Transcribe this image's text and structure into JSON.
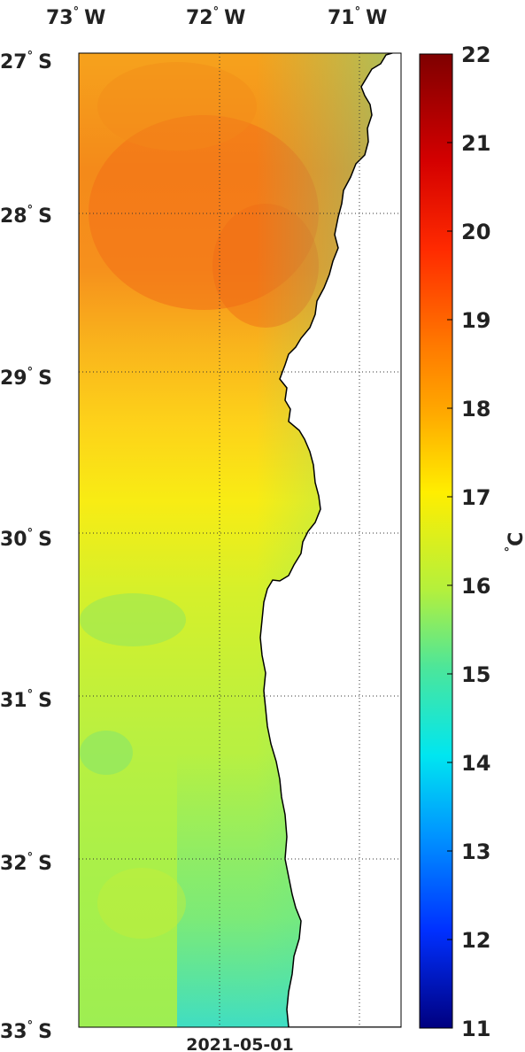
{
  "map": {
    "date": "2021-05-01",
    "lon_labels": [
      {
        "deg": "73",
        "hemi": "W"
      },
      {
        "deg": "72",
        "hemi": "W"
      },
      {
        "deg": "71",
        "hemi": "W"
      }
    ],
    "lat_labels": [
      {
        "deg": "27",
        "hemi": "S"
      },
      {
        "deg": "28",
        "hemi": "S"
      },
      {
        "deg": "29",
        "hemi": "S"
      },
      {
        "deg": "30",
        "hemi": "S"
      },
      {
        "deg": "31",
        "hemi": "S"
      },
      {
        "deg": "32",
        "hemi": "S"
      },
      {
        "deg": "33",
        "hemi": "S"
      }
    ],
    "lon_range": [
      -73,
      -70.7
    ],
    "lat_range": [
      -33,
      -27
    ],
    "gridlines": "dotted",
    "land_color": "#ffffff",
    "coast_color": "#000000"
  },
  "colorbar": {
    "ticks": [
      "22",
      "21",
      "20",
      "19",
      "18",
      "17",
      "16",
      "15",
      "14",
      "13",
      "12",
      "11"
    ],
    "unit_deg": "°",
    "unit": "C",
    "min": 11,
    "max": 22,
    "colormap": "jet"
  }
}
